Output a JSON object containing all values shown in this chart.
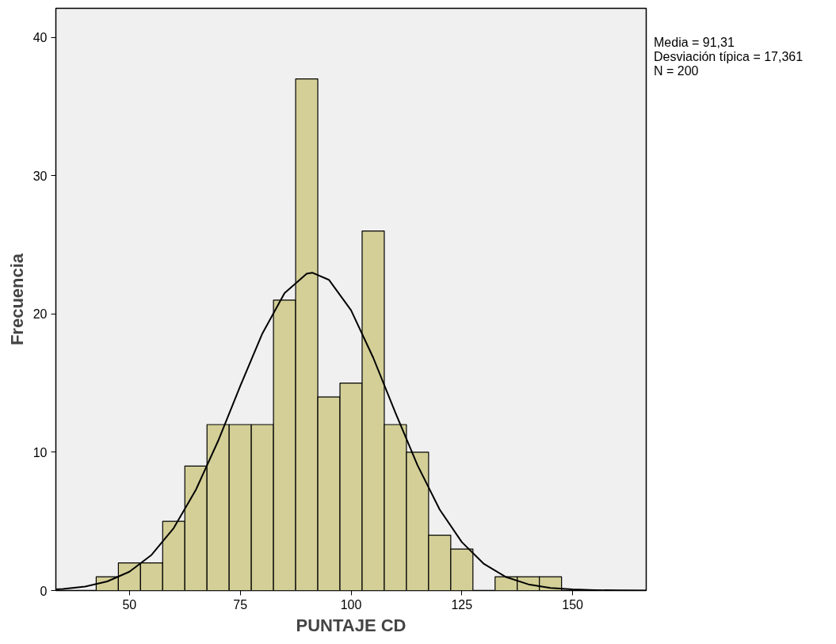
{
  "chart_data": {
    "type": "histogram",
    "xlabel": "PUNTAJE CD",
    "ylabel": "Frecuencia",
    "bins": [
      42.5,
      47.5,
      52.5,
      57.5,
      62.5,
      67.5,
      72.5,
      77.5,
      82.5,
      87.5,
      92.5,
      97.5,
      102.5,
      107.5,
      112.5,
      117.5,
      122.5,
      127.5,
      132.5,
      137.5,
      142.5,
      147.5
    ],
    "values": [
      1,
      2,
      2,
      5,
      9,
      12,
      12,
      12,
      21,
      37,
      14,
      15,
      26,
      12,
      10,
      4,
      3,
      0,
      1,
      1,
      1
    ],
    "color": "#d3cf97",
    "series": [
      {
        "type": "line",
        "color": "#000000",
        "x": [
          33.4,
          35,
          40,
          45,
          50,
          55,
          60,
          65,
          70,
          75,
          80,
          85,
          90,
          91.31,
          95,
          100,
          105,
          110,
          115,
          120,
          125,
          130,
          135,
          140,
          145,
          150,
          155,
          160,
          166.6
        ],
        "values": [
          0.09,
          0.12,
          0.29,
          0.66,
          1.36,
          2.58,
          4.52,
          7.29,
          10.81,
          14.78,
          18.59,
          21.51,
          22.91,
          22.98,
          22.47,
          20.27,
          16.84,
          12.87,
          9.06,
          5.86,
          3.5,
          1.92,
          0.97,
          0.45,
          0.19,
          0.08,
          0.03,
          0.01,
          0.0
        ]
      }
    ],
    "xlim": [
      33.4,
      166.6
    ],
    "ylim": [
      0,
      42.1
    ],
    "xticks": [
      50,
      75,
      100,
      125,
      150
    ],
    "yticks": [
      0,
      10,
      20,
      30,
      40
    ],
    "grid": false,
    "annotations": [
      "Media = 91,31",
      "Desviación típica = 17,361",
      "N = 200"
    ]
  }
}
